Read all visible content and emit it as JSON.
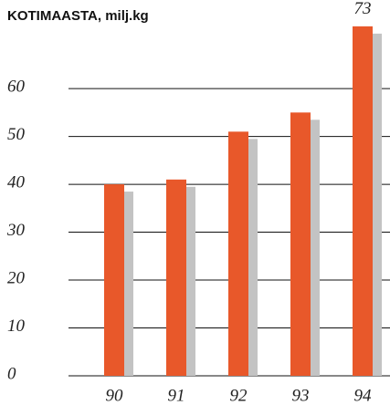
{
  "chart_data": {
    "type": "bar",
    "title": "KOTIMAASTA, milj.kg",
    "categories": [
      "90",
      "91",
      "92",
      "93",
      "94"
    ],
    "values": [
      40,
      41,
      51,
      55,
      73
    ],
    "value_labels": [
      null,
      null,
      null,
      null,
      "73"
    ],
    "color": "#e8582a",
    "shadow_color": "#c3c3c3",
    "ylim": [
      0,
      78.5
    ],
    "yticks": [
      0,
      10,
      20,
      30,
      40,
      50,
      60
    ],
    "grid": true
  }
}
